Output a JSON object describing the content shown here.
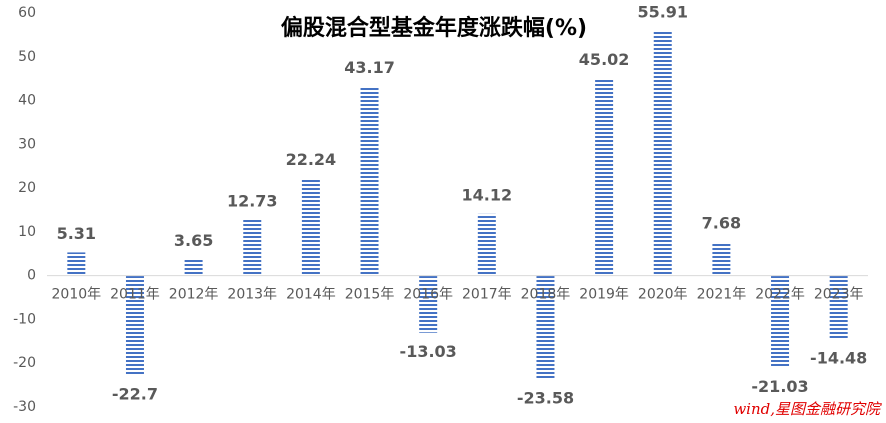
{
  "chart_data": {
    "type": "bar",
    "title": "偏股混合型基金年度涨跌幅(%)",
    "categories": [
      "2010年",
      "2011年",
      "2012年",
      "2013年",
      "2014年",
      "2015年",
      "2016年",
      "2017年",
      "2018年",
      "2019年",
      "2020年",
      "2021年",
      "2022年",
      "2023年"
    ],
    "values": [
      5.31,
      -22.7,
      3.65,
      12.73,
      22.24,
      43.17,
      -13.03,
      14.12,
      -23.58,
      45.02,
      55.91,
      7.68,
      -21.03,
      -14.48
    ],
    "color": "#4472c4",
    "ylim": [
      -30,
      60
    ],
    "yticks": [
      -30,
      -20,
      -10,
      0,
      10,
      20,
      30,
      40,
      50,
      60
    ],
    "grid": false,
    "annotation": "wind,星图金融研究院"
  }
}
